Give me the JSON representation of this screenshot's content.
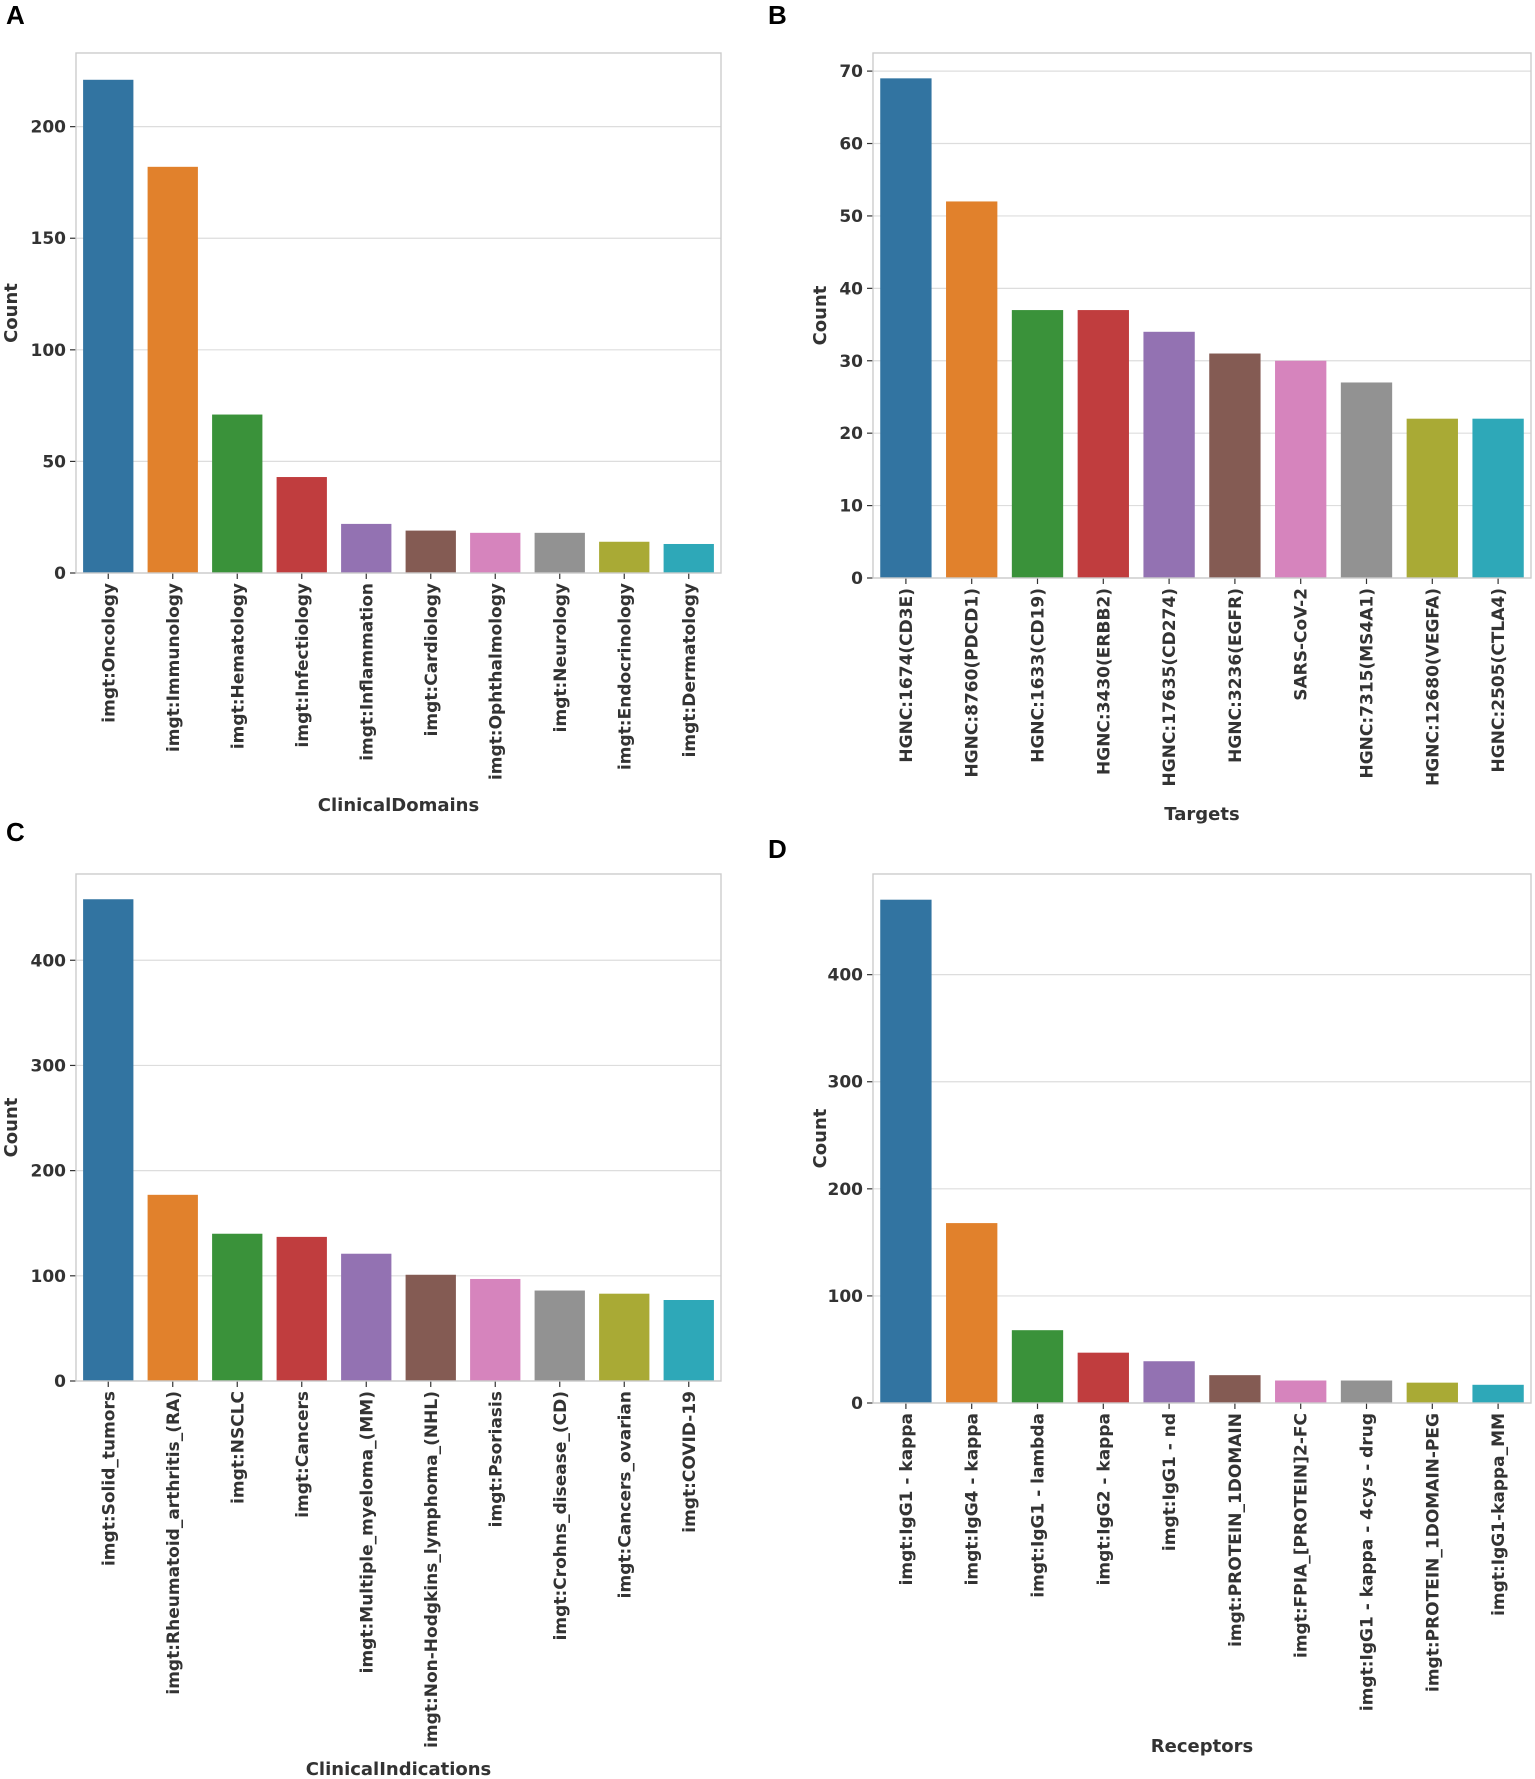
{
  "panels": [
    "A",
    "B",
    "C",
    "D"
  ],
  "chart_data": [
    {
      "type": "bar",
      "panel": "A",
      "categories": [
        "imgt:Oncology",
        "imgt:Immunology",
        "imgt:Hematology",
        "imgt:Infectiology",
        "imgt:Inflammation",
        "imgt:Cardiology",
        "imgt:Ophthalmology",
        "imgt:Neurology",
        "imgt:Endocrinology",
        "imgt:Dermatology"
      ],
      "values": [
        221,
        182,
        71,
        43,
        22,
        19,
        18,
        18,
        14,
        13
      ],
      "colors": [
        "#3274a1",
        "#e1812c",
        "#3a923a",
        "#c03d3e",
        "#9372b2",
        "#845b53",
        "#d684bd",
        "#929292",
        "#a9aa35",
        "#2ea8b8"
      ],
      "title": "",
      "xlabel": "ClinicalDomains",
      "ylabel": "Count",
      "ylim": [
        0,
        233
      ],
      "yticks": [
        0,
        50,
        100,
        150,
        200
      ],
      "grid": true
    },
    {
      "type": "bar",
      "panel": "B",
      "categories": [
        "HGNC:1674(CD3E)",
        "HGNC:8760(PDCD1)",
        "HGNC:1633(CD19)",
        "HGNC:3430(ERBB2)",
        "HGNC:17635(CD274)",
        "HGNC:3236(EGFR)",
        "SARS-CoV-2",
        "HGNC:7315(MS4A1)",
        "HGNC:12680(VEGFA)",
        "HGNC:2505(CTLA4)"
      ],
      "values": [
        69,
        52,
        37,
        37,
        34,
        31,
        30,
        27,
        22,
        22
      ],
      "colors": [
        "#3274a1",
        "#e1812c",
        "#3a923a",
        "#c03d3e",
        "#9372b2",
        "#845b53",
        "#d684bd",
        "#929292",
        "#a9aa35",
        "#2ea8b8"
      ],
      "title": "",
      "xlabel": "Targets",
      "ylabel": "Count",
      "ylim": [
        0,
        72.5
      ],
      "yticks": [
        0,
        10,
        20,
        30,
        40,
        50,
        60,
        70
      ],
      "grid": true
    },
    {
      "type": "bar",
      "panel": "C",
      "categories": [
        "imgt:Solid_tumors",
        "imgt:Rheumatoid_arthritis_(RA)",
        "imgt:NSCLC",
        "imgt:Cancers",
        "imgt:Multiple_myeloma_(MM)",
        "imgt:Non-Hodgkins_lymphoma_(NHL)",
        "imgt:Psoriasis",
        "imgt:Crohns_disease_(CD)",
        "imgt:Cancers_ovarian",
        "imgt:COVID-19"
      ],
      "values": [
        458,
        177,
        140,
        137,
        121,
        101,
        97,
        86,
        83,
        77
      ],
      "colors": [
        "#3274a1",
        "#e1812c",
        "#3a923a",
        "#c03d3e",
        "#9372b2",
        "#845b53",
        "#d684bd",
        "#929292",
        "#a9aa35",
        "#2ea8b8"
      ],
      "title": "",
      "xlabel": "ClinicalIndications",
      "ylabel": "Count",
      "ylim": [
        0,
        482
      ],
      "yticks": [
        0,
        100,
        200,
        300,
        400
      ],
      "grid": true
    },
    {
      "type": "bar",
      "panel": "D",
      "categories": [
        "imgt:IgG1 - kappa",
        "imgt:IgG4 - kappa",
        "imgt:IgG1 - lambda",
        "imgt:IgG2 - kappa",
        "imgt:IgG1 - nd",
        "imgt:PROTEIN_1DOMAIN",
        "imgt:FPIA_[PROTEIN]2-FC",
        "imgt:IgG1 - kappa - 4cys - drug",
        "imgt:PROTEIN_1DOMAIN-PEG",
        "imgt:IgG1-kappa_MM"
      ],
      "values": [
        470,
        168,
        68,
        47,
        39,
        26,
        21,
        21,
        19,
        17
      ],
      "colors": [
        "#3274a1",
        "#e1812c",
        "#3a923a",
        "#c03d3e",
        "#9372b2",
        "#845b53",
        "#d684bd",
        "#929292",
        "#a9aa35",
        "#2ea8b8"
      ],
      "title": "",
      "xlabel": "Receptors",
      "ylabel": "Count",
      "ylim": [
        0,
        494
      ],
      "yticks": [
        0,
        100,
        200,
        300,
        400
      ],
      "grid": true
    }
  ]
}
